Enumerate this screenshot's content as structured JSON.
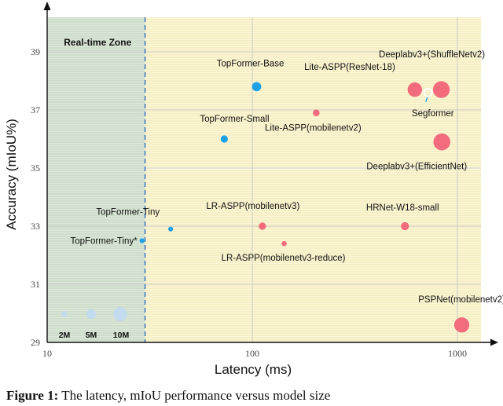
{
  "chart_data": {
    "type": "scatter",
    "xscale": "log",
    "xlabel": "Latency (ms)",
    "ylabel": "Accuracy (mIoU%)",
    "xlim": [
      10,
      1300
    ],
    "ylim": [
      29,
      40
    ],
    "xticks": [
      10,
      100,
      1000
    ],
    "yticks": [
      29,
      31,
      33,
      35,
      37,
      39
    ],
    "zone": {
      "label": "Real-time Zone",
      "x_end": 30
    },
    "size_legend": [
      {
        "label": "2M",
        "params_m": 2
      },
      {
        "label": "5M",
        "params_m": 5
      },
      {
        "label": "10M",
        "params_m": 10
      }
    ],
    "colors": {
      "topformer": "#1ea1e6",
      "other": "#f25f76",
      "legend": "#c3dbef",
      "zone_line": "#3f78c9",
      "zone_fill": "#dbe8d8",
      "rest_fill": "#fbf6d6"
    },
    "points": [
      {
        "name": "TopFormer-Tiny*",
        "x": 29,
        "y": 32.5,
        "params_m": 1.4,
        "family": "topformer"
      },
      {
        "name": "TopFormer-Tiny",
        "x": 40,
        "y": 32.9,
        "params_m": 1.4,
        "family": "topformer"
      },
      {
        "name": "TopFormer-Small",
        "x": 73,
        "y": 36.0,
        "params_m": 3.1,
        "family": "topformer"
      },
      {
        "name": "TopFormer-Base",
        "x": 105,
        "y": 37.8,
        "params_m": 5.1,
        "family": "topformer"
      },
      {
        "name": "LR-ASPP(mobilenetv3-reduce)",
        "x": 143,
        "y": 32.4,
        "params_m": 1.6,
        "family": "other"
      },
      {
        "name": "LR-ASPP(mobilenetv3)",
        "x": 112,
        "y": 33.0,
        "params_m": 3.2,
        "family": "other"
      },
      {
        "name": "Lite-ASPP(mobilenetv2)",
        "x": 205,
        "y": 36.9,
        "params_m": 2.7,
        "family": "other"
      },
      {
        "name": "HRNet-W18-small",
        "x": 555,
        "y": 33.0,
        "params_m": 3.9,
        "family": "other"
      },
      {
        "name": "Lite-ASPP(ResNet-18)",
        "x": 620,
        "y": 37.7,
        "params_m": 12.5,
        "family": "other"
      },
      {
        "name": "Deeplabv3+(ShuffleNetv2)",
        "x": 835,
        "y": 37.7,
        "params_m": 16.9,
        "family": "other"
      },
      {
        "name": "Segformer",
        "x": 720,
        "y": 37.6,
        "params_m": 3.8,
        "family": "segformer"
      },
      {
        "name": "Deeplabv3+(EfficientNet)",
        "x": 840,
        "y": 35.9,
        "params_m": 17.1,
        "family": "other"
      },
      {
        "name": "PSPNet(mobilenetv2)",
        "x": 1050,
        "y": 29.6,
        "params_m": 13.7,
        "family": "other"
      }
    ]
  },
  "caption": {
    "prefix": "Figure 1:",
    "text": "The latency, mIoU performance versus model size"
  }
}
